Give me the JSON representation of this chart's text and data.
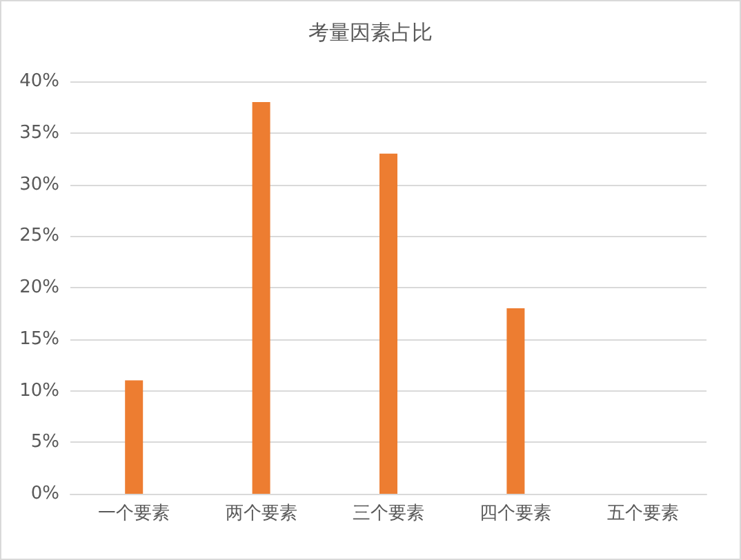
{
  "chart_data": {
    "type": "bar",
    "title": "考量因素占比",
    "categories": [
      "一个要素",
      "两个要素",
      "三个要素",
      "四个要素",
      "五个要素"
    ],
    "values": [
      11,
      38,
      33,
      18,
      0
    ],
    "color": "#ed7d31",
    "ylim": [
      0,
      40
    ],
    "yticks": [
      {
        "value": 0,
        "label": "0%"
      },
      {
        "value": 5,
        "label": "5%"
      },
      {
        "value": 10,
        "label": "10%"
      },
      {
        "value": 15,
        "label": "15%"
      },
      {
        "value": 20,
        "label": "20%"
      },
      {
        "value": 25,
        "label": "25%"
      },
      {
        "value": 30,
        "label": "30%"
      },
      {
        "value": 35,
        "label": "35%"
      },
      {
        "value": 40,
        "label": "40%"
      }
    ],
    "grid": "y"
  }
}
